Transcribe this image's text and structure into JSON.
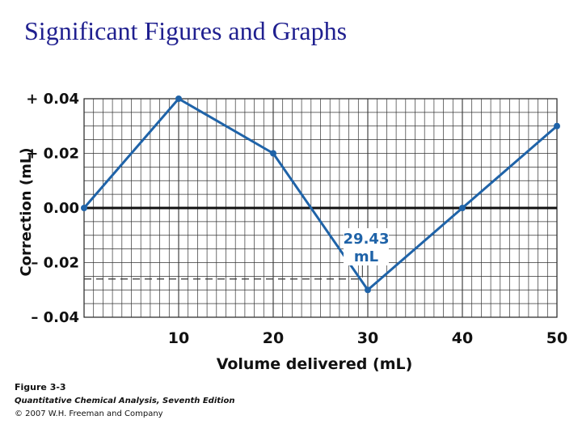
{
  "slide": {
    "title": "Significant Figures and Graphs"
  },
  "chart_data": {
    "type": "line",
    "xlabel": "Volume delivered (mL)",
    "ylabel": "Correction (mL)",
    "xlim": [
      0,
      50
    ],
    "ylim": [
      -0.04,
      0.04
    ],
    "x_tick_values": [
      10,
      20,
      30,
      40,
      50
    ],
    "x_tick_labels": [
      "10",
      "20",
      "30",
      "40",
      "50"
    ],
    "y_tick_values": [
      0.04,
      0.02,
      0.0,
      -0.02,
      -0.04
    ],
    "y_tick_labels": [
      "+ 0.04",
      "+ 0.02",
      "0.00",
      "– 0.02",
      "– 0.04"
    ],
    "grid": true,
    "series": [
      {
        "color": "#1f63a8",
        "x": [
          0,
          10,
          20,
          30,
          40,
          50
        ],
        "y": [
          0.0,
          0.04,
          0.02,
          -0.03,
          0.0,
          0.03
        ]
      }
    ],
    "annotation": {
      "line1": "29.43",
      "line2": "mL",
      "x": 29.43,
      "y": -0.026,
      "color": "#1f63a8"
    }
  },
  "caption": {
    "figure": "Figure 3-3",
    "book": "Quantitative Chemical Analysis, Seventh Edition",
    "copyright": "© 2007 W.H. Freeman and Company"
  }
}
